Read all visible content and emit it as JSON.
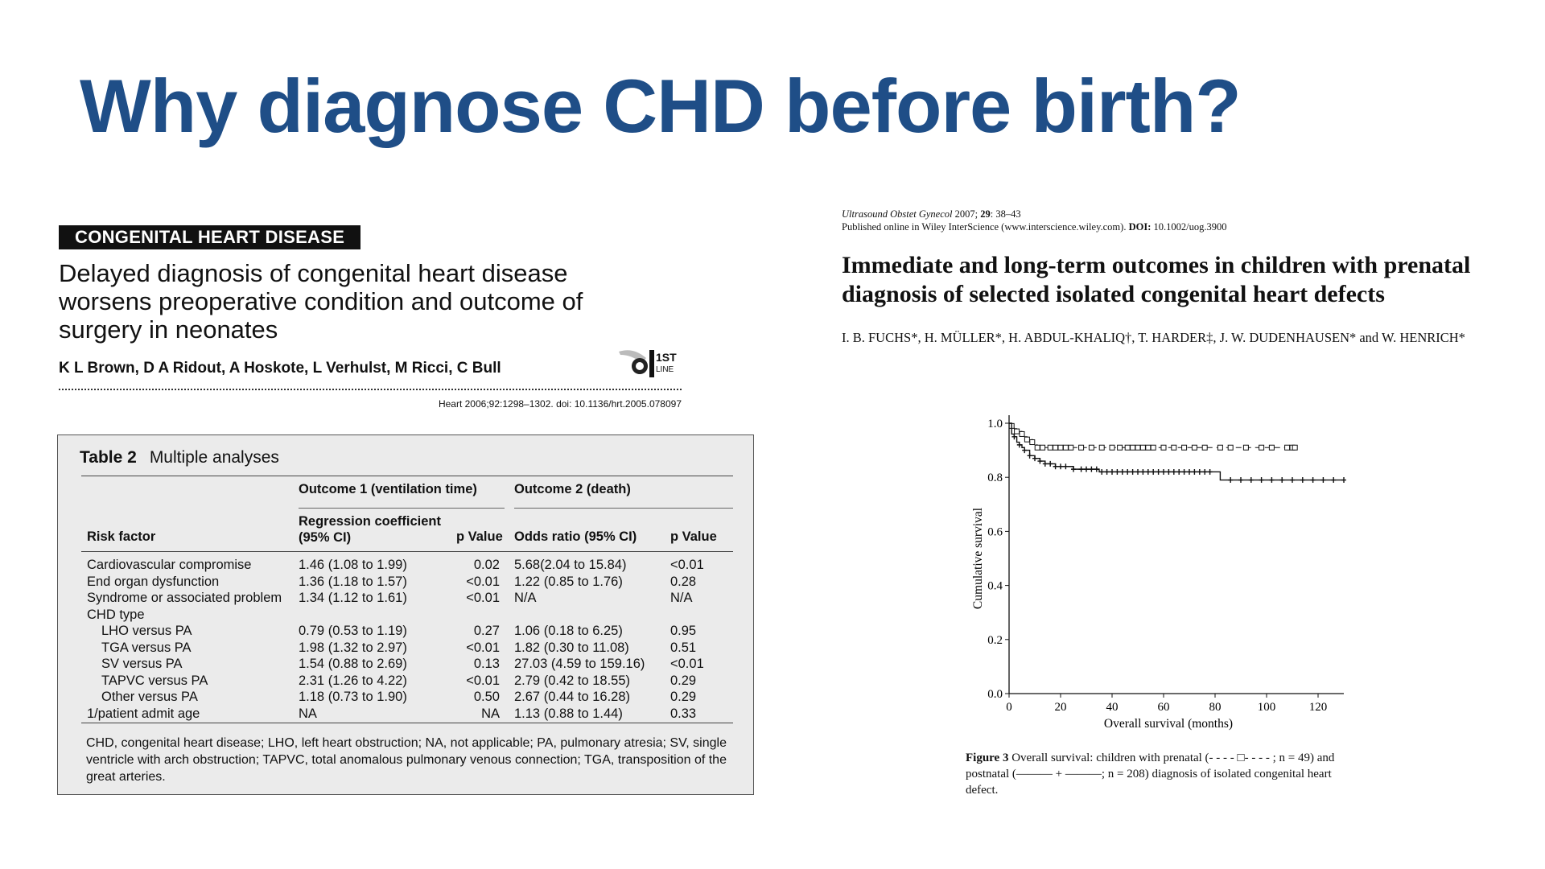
{
  "slide": {
    "title": "Why diagnose CHD before birth?"
  },
  "left_paper": {
    "section_label": "CONGENITAL HEART DISEASE",
    "title": "Delayed diagnosis of congenital heart disease worsens preoperative condition and outcome of surgery in neonates",
    "authors": "K L Brown, D A Ridout, A Hoskote, L Verhulst, M Ricci, C Bull",
    "logo_text": {
      "top": "1ST",
      "bottom": "LINE"
    },
    "citation": "Heart 2006;92:1298–1302. doi: 10.1136/hrt.2005.078097",
    "table": {
      "number": "Table 2",
      "caption": "Multiple analyses",
      "group_headers": [
        "Outcome 1 (ventilation time)",
        "Outcome 2 (death)"
      ],
      "column_headers": {
        "risk_factor": "Risk factor",
        "reg_coef": "Regression coefficient\n(95% CI)",
        "p1": "p Value",
        "odds": "Odds ratio (95% CI)",
        "p2": "p Value"
      },
      "rows": [
        {
          "factor": "Cardiovascular compromise",
          "indent": false,
          "reg": "1.46 (1.08 to 1.99)",
          "p1": "0.02",
          "odds": "5.68(2.04 to 15.84)",
          "p2": "<0.01"
        },
        {
          "factor": "End organ dysfunction",
          "indent": false,
          "reg": "1.36 (1.18 to 1.57)",
          "p1": "<0.01",
          "odds": "1.22 (0.85 to 1.76)",
          "p2": "0.28"
        },
        {
          "factor": "Syndrome or associated problem",
          "indent": false,
          "reg": "1.34 (1.12 to 1.61)",
          "p1": "<0.01",
          "odds": "N/A",
          "p2": "N/A"
        },
        {
          "factor": "CHD type",
          "indent": false,
          "reg": "",
          "p1": "",
          "odds": "",
          "p2": ""
        },
        {
          "factor": "LHO versus PA",
          "indent": true,
          "reg": "0.79 (0.53 to 1.19)",
          "p1": "0.27",
          "odds": "1.06 (0.18 to 6.25)",
          "p2": "0.95"
        },
        {
          "factor": "TGA versus PA",
          "indent": true,
          "reg": "1.98 (1.32 to 2.97)",
          "p1": "<0.01",
          "odds": "1.82 (0.30 to 11.08)",
          "p2": "0.51"
        },
        {
          "factor": "SV versus PA",
          "indent": true,
          "reg": "1.54 (0.88 to 2.69)",
          "p1": "0.13",
          "odds": "27.03 (4.59 to 159.16)",
          "p2": "<0.01"
        },
        {
          "factor": "TAPVC versus PA",
          "indent": true,
          "reg": "2.31 (1.26 to 4.22)",
          "p1": "<0.01",
          "odds": "2.79 (0.42 to 18.55)",
          "p2": "0.29"
        },
        {
          "factor": "Other versus PA",
          "indent": true,
          "reg": "1.18 (0.73 to 1.90)",
          "p1": "0.50",
          "odds": "2.67 (0.44 to 16.28)",
          "p2": "0.29"
        },
        {
          "factor": "1/patient admit age",
          "indent": false,
          "reg": "NA",
          "p1": "NA",
          "odds": "1.13 (0.88 to 1.44)",
          "p2": "0.33"
        }
      ],
      "footnote": "CHD, congenital heart disease; LHO, left heart obstruction; NA, not applicable; PA, pulmonary atresia; SV, single ventricle with arch obstruction; TAPVC, total anomalous pulmonary venous connection; TGA, transposition of the great arteries."
    }
  },
  "right_paper": {
    "journal": "Ultrasound Obstet Gynecol",
    "journal_rest": " 2007; ",
    "volume": "29",
    "pages": ": 38–43",
    "published_line_a": "Published online in Wiley InterScience (www.interscience.wiley.com). ",
    "doi_label": "DOI:",
    "doi": " 10.1002/uog.3900",
    "title": "Immediate and long-term outcomes in children with prenatal diagnosis of selected isolated congenital heart defects",
    "authors": "I. B. FUCHS*, H. MÜLLER*, H. ABDUL-KHALIQ†, T. HARDER‡, J. W. DUDENHAUSEN* and W. HENRICH*",
    "figure_label": "Figure 3",
    "figure_caption": " Overall survival: children with prenatal (- - - - □- - - - ; n = 49) and postnatal (——— + ———; n = 208) diagnosis of isolated congenital heart defect."
  },
  "chart_data": {
    "type": "line",
    "xlabel": "Overall survival (months)",
    "ylabel": "Cumulative survival",
    "xlim": [
      0,
      130
    ],
    "ylim": [
      0,
      1.0
    ],
    "xticks": [
      0,
      20,
      40,
      60,
      80,
      100,
      120
    ],
    "yticks": [
      0.0,
      0.2,
      0.4,
      0.6,
      0.8,
      1.0
    ],
    "ytick_labels": [
      "0.0",
      "0.2",
      "0.4",
      "0.6",
      "0.8",
      "1.0"
    ],
    "series": [
      {
        "name": "prenatal",
        "style": "dashed-square",
        "x": [
          0,
          1,
          2,
          3,
          4,
          5,
          6,
          7,
          8,
          9,
          10,
          11,
          12,
          13,
          14,
          110
        ],
        "y": [
          1.0,
          0.99,
          0.98,
          0.97,
          0.97,
          0.96,
          0.95,
          0.94,
          0.94,
          0.93,
          0.92,
          0.91,
          0.91,
          0.91,
          0.91,
          0.91
        ],
        "censor_x": [
          1,
          3,
          5,
          7,
          9,
          11,
          13,
          16,
          18,
          20,
          22,
          24,
          28,
          32,
          36,
          40,
          43,
          46,
          48,
          50,
          52,
          54,
          56,
          60,
          64,
          68,
          72,
          76,
          82,
          86,
          92,
          98,
          102,
          108,
          110,
          111
        ]
      },
      {
        "name": "postnatal",
        "style": "solid-plus",
        "x": [
          0,
          1,
          2,
          3,
          4,
          5,
          6,
          8,
          10,
          12,
          14,
          16,
          18,
          20,
          25,
          30,
          35,
          40,
          80,
          82,
          130
        ],
        "y": [
          1.0,
          0.96,
          0.95,
          0.93,
          0.92,
          0.91,
          0.9,
          0.88,
          0.87,
          0.86,
          0.85,
          0.85,
          0.84,
          0.84,
          0.83,
          0.83,
          0.82,
          0.82,
          0.82,
          0.79,
          0.79
        ],
        "censor_x": [
          2,
          4,
          6,
          8,
          10,
          12,
          14,
          16,
          18,
          20,
          22,
          25,
          28,
          30,
          32,
          34,
          36,
          38,
          40,
          42,
          44,
          46,
          48,
          50,
          52,
          54,
          56,
          58,
          60,
          62,
          64,
          66,
          68,
          70,
          72,
          74,
          76,
          78,
          86,
          90,
          94,
          98,
          102,
          106,
          110,
          114,
          118,
          122,
          126,
          130
        ]
      }
    ]
  }
}
